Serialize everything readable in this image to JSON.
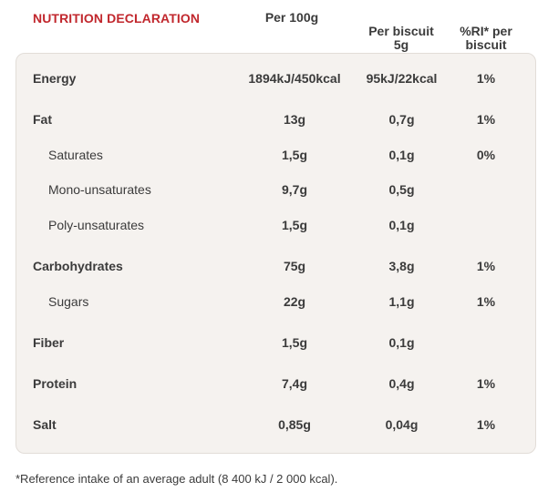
{
  "header": {
    "title": "NUTRITION DECLARATION",
    "col_per100": "Per 100g",
    "col_perbiscuit": "Per biscuit\n5g",
    "col_ri": "%RI* per\nbiscuit"
  },
  "rows": [
    {
      "name": "Energy",
      "per100": "1894kJ/450kcal",
      "perbiscuit": "95kJ/22kcal",
      "ri": "1%"
    },
    {
      "name": "Fat",
      "per100": "13g",
      "perbiscuit": "0,7g",
      "ri": "1%"
    },
    {
      "name": "Saturates",
      "per100": "1,5g",
      "perbiscuit": "0,1g",
      "ri": "0%"
    },
    {
      "name": "Mono-unsaturates",
      "per100": "9,7g",
      "perbiscuit": "0,5g",
      "ri": ""
    },
    {
      "name": "Poly-unsaturates",
      "per100": "1,5g",
      "perbiscuit": "0,1g",
      "ri": ""
    },
    {
      "name": "Carbohydrates",
      "per100": "75g",
      "perbiscuit": "3,8g",
      "ri": "1%"
    },
    {
      "name": "Sugars",
      "per100": "22g",
      "perbiscuit": "1,1g",
      "ri": "1%"
    },
    {
      "name": "Fiber",
      "per100": "1,5g",
      "perbiscuit": "0,1g",
      "ri": ""
    },
    {
      "name": "Protein",
      "per100": "7,4g",
      "perbiscuit": "0,4g",
      "ri": "1%"
    },
    {
      "name": "Salt",
      "per100": "0,85g",
      "perbiscuit": "0,04g",
      "ri": "1%"
    }
  ],
  "footnote": "*Reference intake of an average adult (8 400 kJ / 2 000 kcal)."
}
